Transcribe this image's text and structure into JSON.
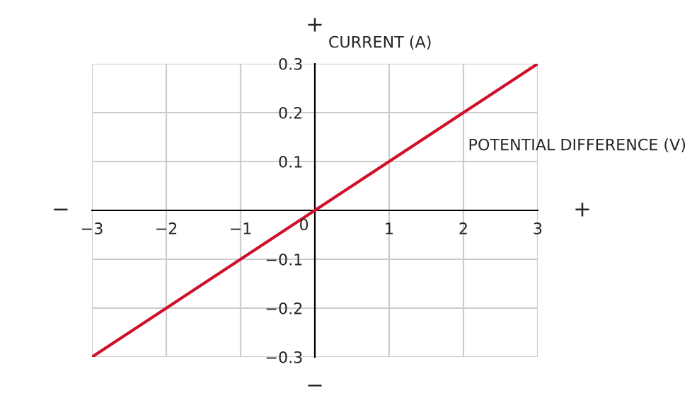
{
  "chart_data": {
    "type": "line",
    "xlabel": "POTENTIAL DIFFERENCE (V)",
    "ylabel": "CURRENT (A)",
    "x": [
      -3,
      3
    ],
    "series": [
      {
        "color": "#d0102a",
        "values": [
          -0.3,
          0.3
        ]
      }
    ],
    "xlim": [
      -3,
      3
    ],
    "ylim": [
      -0.3,
      0.3
    ],
    "xticks": [
      {
        "value": -3,
        "label": "−3"
      },
      {
        "value": -2,
        "label": "−2"
      },
      {
        "value": -1,
        "label": "−1"
      },
      0,
      1,
      2,
      3
    ],
    "yticks": [
      {
        "value": -0.3,
        "label": "−0.3"
      },
      {
        "value": -0.2,
        "label": "−0.2"
      },
      {
        "value": -0.1,
        "label": "−0.1"
      },
      {
        "value": 0,
        "label": null
      },
      0.1,
      0.2,
      0.3
    ],
    "grid": true,
    "marker": "none",
    "line_style": "solid",
    "annotations": [
      "+",
      "−",
      "−",
      "+"
    ]
  }
}
